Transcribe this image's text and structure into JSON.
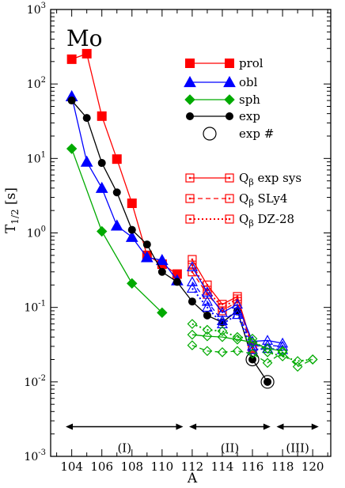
{
  "chart_data": {
    "type": "line",
    "title": "Mo",
    "xlabel": "A",
    "ylabel": "T",
    "ylabel_sub": "1/2",
    "ylabel_unit": " [s]",
    "xlim": [
      102.6,
      121.2
    ],
    "ylim_log10": [
      -3,
      3
    ],
    "yscale": "log",
    "x_ticks": [
      104,
      106,
      108,
      110,
      112,
      114,
      116,
      118,
      120
    ],
    "y_tick_base": "10",
    "y_tick_exponents": [
      -3,
      -2,
      -1,
      0,
      1,
      2,
      3
    ],
    "legend_placement": "top-right",
    "series": [
      {
        "name": "prol",
        "color": "#ff0000",
        "marker": "square",
        "filled": true,
        "dash": "solid",
        "x": [
          104,
          105,
          106,
          107,
          108,
          109,
          110,
          111
        ],
        "y": [
          215,
          255,
          37,
          9.8,
          2.5,
          0.5,
          0.38,
          0.28
        ]
      },
      {
        "name": "obl",
        "color": "#0000ff",
        "marker": "triangle",
        "filled": true,
        "dash": "solid",
        "x": [
          104,
          105,
          106,
          107,
          108,
          109,
          110,
          111
        ],
        "y": [
          68,
          9.0,
          4.0,
          1.25,
          0.88,
          0.47,
          0.43,
          0.23
        ]
      },
      {
        "name": "sph",
        "color": "#00aa00",
        "marker": "diamond",
        "filled": true,
        "dash": "solid",
        "x": [
          104,
          106,
          108,
          110
        ],
        "y": [
          13.5,
          1.05,
          0.21,
          0.085
        ]
      },
      {
        "name": "exp",
        "color": "#000000",
        "marker": "circle",
        "filled": true,
        "dash": "solid",
        "x": [
          104,
          105,
          106,
          107,
          108,
          109,
          110,
          111,
          112,
          113,
          114,
          115,
          116,
          117
        ],
        "y": [
          60,
          35,
          8.7,
          3.5,
          1.1,
          0.7,
          0.3,
          0.22,
          0.12,
          0.078,
          0.063,
          0.09,
          0.02,
          0.01
        ]
      },
      {
        "name": "exp #",
        "color": "#000000",
        "marker": "open-circle",
        "filled": false,
        "dash": "none",
        "x": [
          116,
          117
        ],
        "y": [
          0.02,
          0.01
        ]
      },
      {
        "name": "exp sys",
        "legend_prefix": "Q",
        "legend_sub": "β",
        "color": "#ff0000",
        "marker": "open-square",
        "filled": false,
        "dash": "solid",
        "x": [
          112,
          113,
          114,
          115,
          116
        ],
        "y": [
          0.44,
          0.2,
          0.11,
          0.14,
          0.03
        ]
      },
      {
        "name": "SLy4",
        "legend_prefix": "Q",
        "legend_sub": "β",
        "color": "#ff0000",
        "marker": "open-square",
        "filled": false,
        "dash": "dashed",
        "x": [
          112,
          113,
          114,
          115,
          116
        ],
        "y": [
          0.3,
          0.15,
          0.09,
          0.12,
          0.028
        ]
      },
      {
        "name": "DZ-28",
        "legend_prefix": "Q",
        "legend_sub": "β",
        "color": "#ff0000",
        "marker": "open-square",
        "filled": false,
        "dash": "dotted",
        "x": [
          112,
          113,
          114,
          115,
          116
        ],
        "y": [
          0.37,
          0.17,
          0.1,
          0.13,
          0.029
        ]
      },
      {
        "name": "",
        "color": "#0000ff",
        "marker": "open-triangle",
        "filled": false,
        "dash": "solid",
        "x": [
          112,
          113,
          114,
          115,
          116,
          117,
          118
        ],
        "y": [
          0.35,
          0.16,
          0.085,
          0.11,
          0.035,
          0.036,
          0.033
        ]
      },
      {
        "name": "",
        "color": "#0000ff",
        "marker": "open-triangle",
        "filled": false,
        "dash": "dashed",
        "x": [
          112,
          113,
          114,
          115,
          116,
          117,
          118
        ],
        "y": [
          0.22,
          0.12,
          0.066,
          0.09,
          0.03,
          0.031,
          0.03
        ]
      },
      {
        "name": "",
        "color": "#0000ff",
        "marker": "open-triangle",
        "filled": false,
        "dash": "dotted",
        "x": [
          112,
          113,
          114,
          115,
          116,
          117,
          118
        ],
        "y": [
          0.18,
          0.1,
          0.06,
          0.08,
          0.027,
          0.028,
          0.027
        ]
      },
      {
        "name": "",
        "color": "#00aa00",
        "marker": "open-diamond",
        "filled": false,
        "dash": "dotted",
        "x": [
          112,
          113,
          114,
          115,
          116,
          117,
          118,
          119,
          120
        ],
        "y": [
          0.06,
          0.05,
          0.048,
          0.04,
          0.038,
          0.025,
          0.022,
          0.019,
          0.02
        ]
      },
      {
        "name": "",
        "color": "#00aa00",
        "marker": "open-diamond",
        "filled": false,
        "dash": "solid",
        "x": [
          112,
          113,
          114,
          115,
          116,
          117,
          118
        ],
        "y": [
          0.043,
          0.041,
          0.04,
          0.037,
          0.034,
          0.028,
          0.026
        ]
      },
      {
        "name": "",
        "color": "#00aa00",
        "marker": "open-diamond",
        "filled": false,
        "dash": "dashed",
        "x": [
          112,
          113,
          114,
          115,
          116,
          117,
          118,
          119,
          120
        ],
        "y": [
          0.031,
          0.026,
          0.025,
          0.026,
          0.024,
          0.018,
          0.025,
          0.016,
          0.02
        ]
      }
    ],
    "region_arrows": [
      {
        "label": "(I)",
        "x_from": 103.6,
        "x_to": 111.4,
        "y": 0.0025
      },
      {
        "label": "(II)",
        "x_from": 111.8,
        "x_to": 117.2,
        "y": 0.0025
      },
      {
        "label": "(III)",
        "x_from": 117.6,
        "x_to": 120.4,
        "y": 0.0025
      }
    ],
    "label_y_value": 0.0013
  }
}
